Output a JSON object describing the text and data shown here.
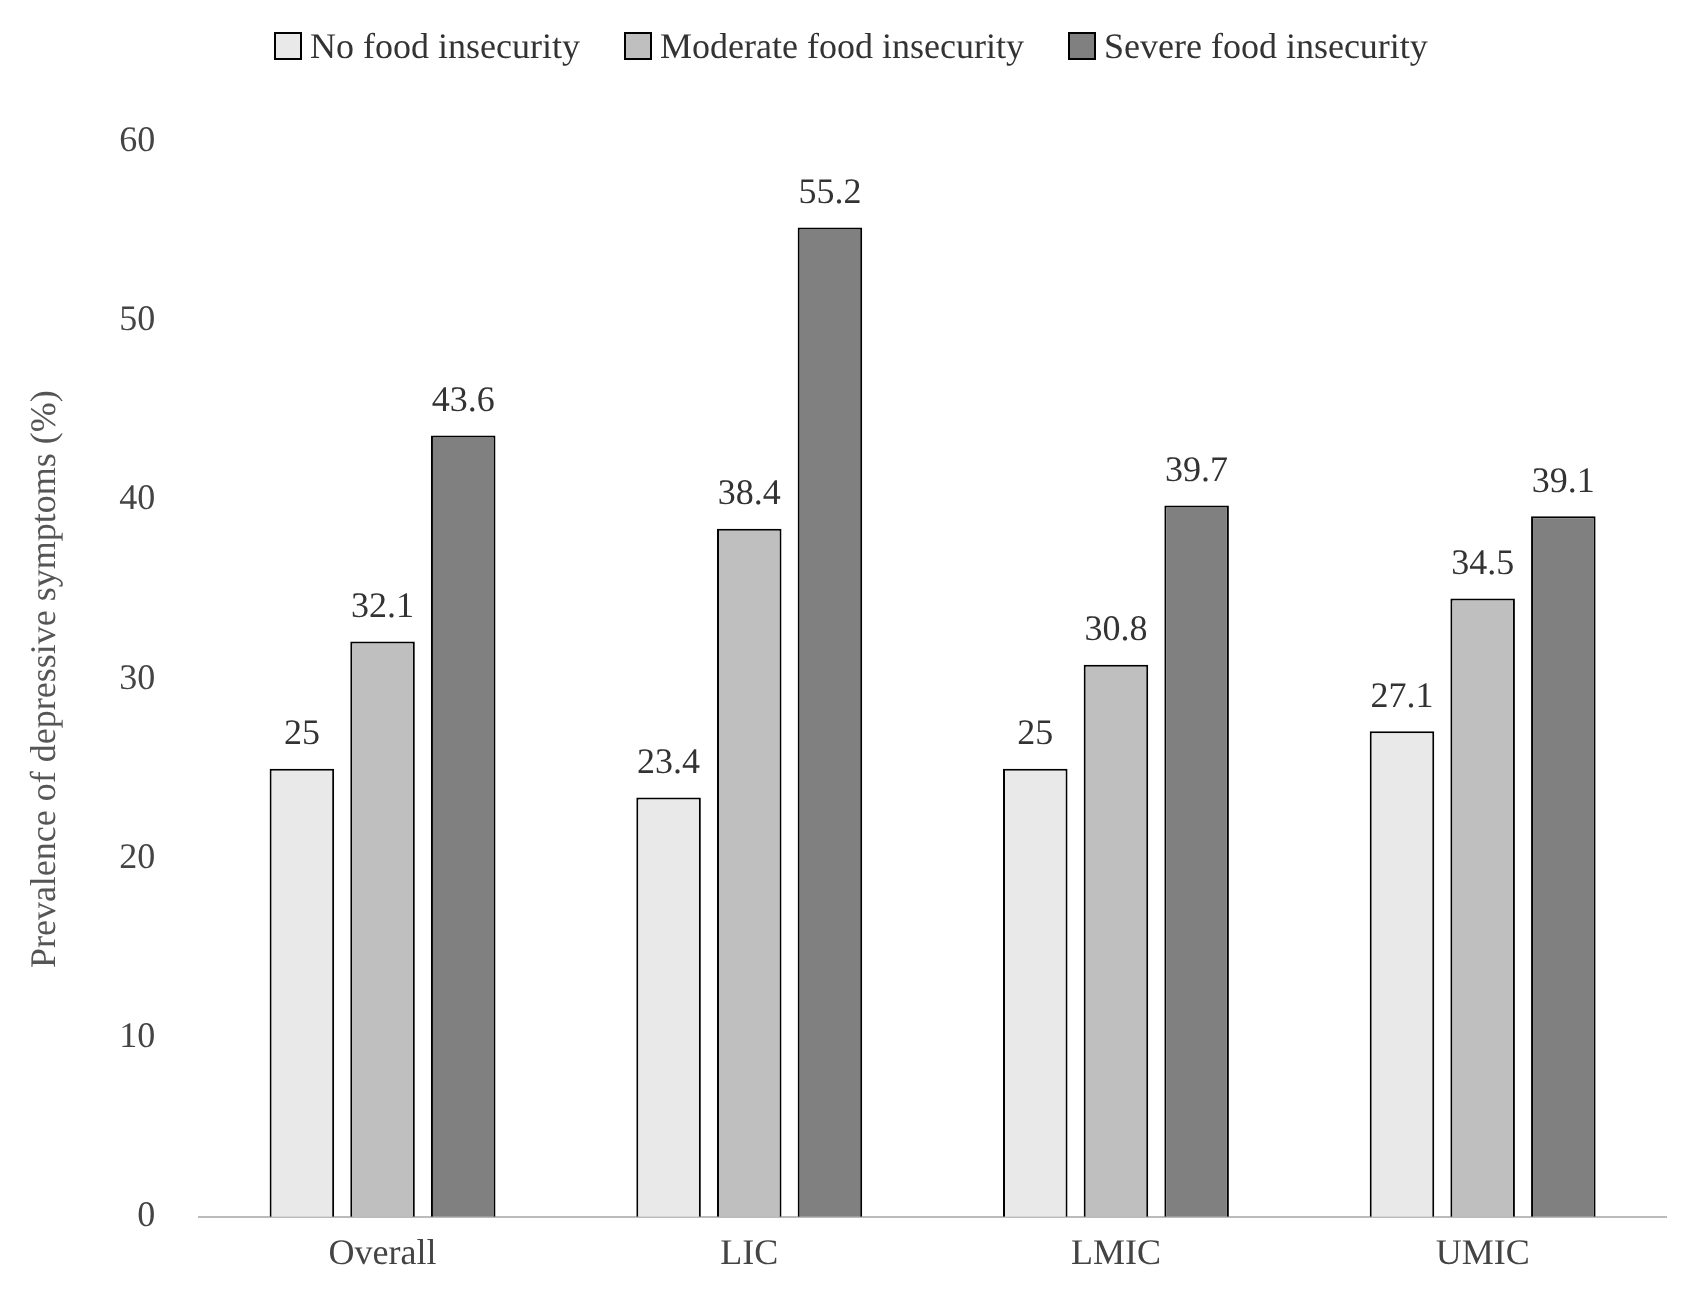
{
  "chart_data": {
    "type": "bar",
    "ylabel": "Prevalence of depressive symptoms (%)",
    "categories": [
      "Overall",
      "LIC",
      "LMIC",
      "UMIC"
    ],
    "series": [
      {
        "name": "No food insecurity",
        "color": "#e9e9e9",
        "values": [
          25,
          23.4,
          25,
          27.1
        ]
      },
      {
        "name": "Moderate food insecurity",
        "color": "#bfbfbf",
        "values": [
          32.1,
          38.4,
          30.8,
          34.5
        ]
      },
      {
        "name": "Severe food insecurity",
        "color": "#808080",
        "values": [
          43.6,
          55.2,
          39.7,
          39.1
        ]
      }
    ],
    "ylim": [
      0,
      60
    ],
    "yticks": [
      0,
      10,
      20,
      30,
      40,
      50,
      60
    ],
    "grid": false,
    "legend": "top",
    "data_labels": true
  }
}
